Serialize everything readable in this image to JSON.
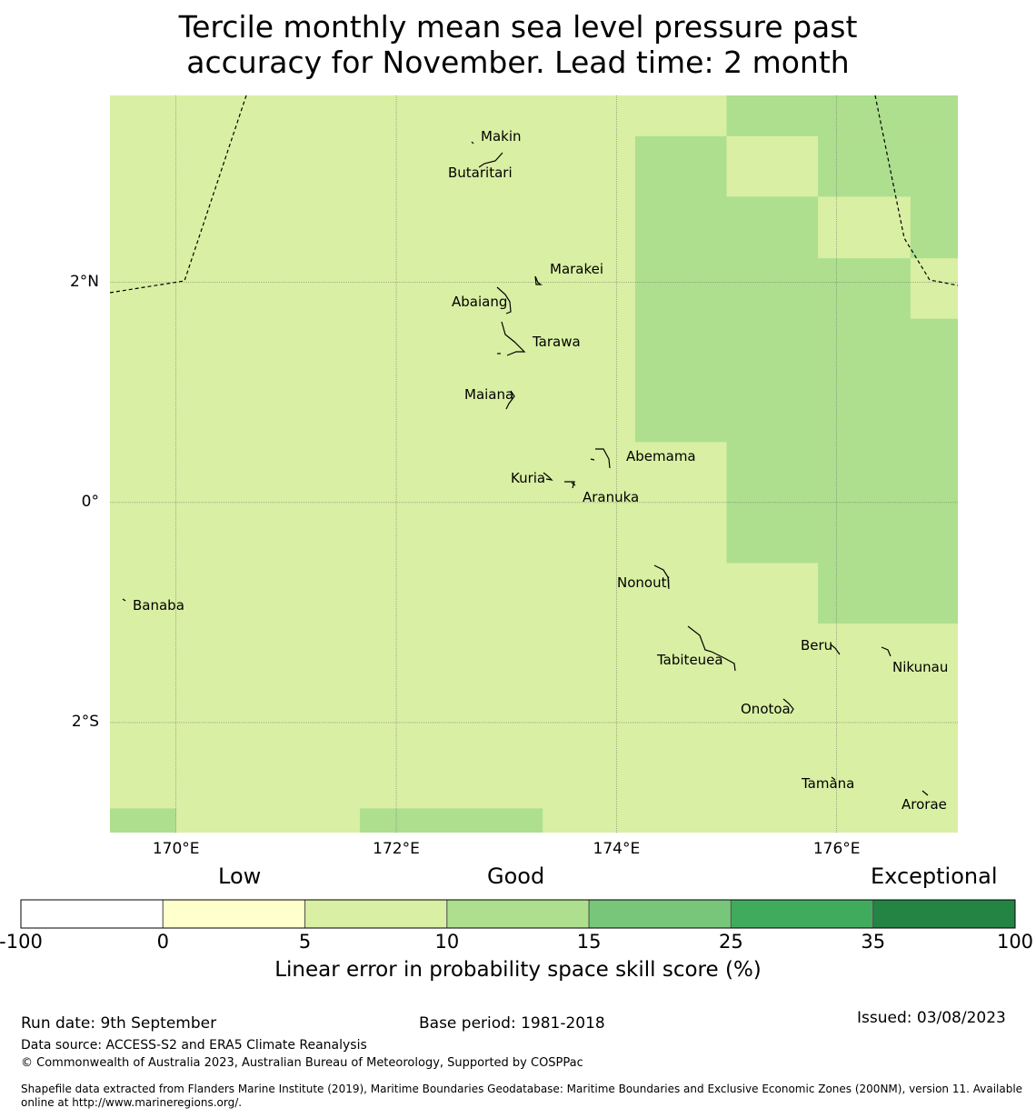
{
  "title": {
    "line1": "Tercile monthly mean sea level pressure past",
    "line2": "accuracy for November. Lead time: 2 month"
  },
  "map": {
    "lon_range": [
      169.4,
      177.1
    ],
    "lat_range": [
      -3.0,
      3.7
    ],
    "lat_ticks": [
      {
        "value": 2,
        "label": "2°N"
      },
      {
        "value": 0,
        "label": "0°"
      },
      {
        "value": -2,
        "label": "2°S"
      }
    ],
    "lon_ticks": [
      {
        "value": 170,
        "label": "170°E"
      },
      {
        "value": 172,
        "label": "172°E"
      },
      {
        "value": 174,
        "label": "174°E"
      },
      {
        "value": 176,
        "label": "176°E"
      }
    ],
    "base_color": "#d9efa3",
    "good_color": "#addf8e",
    "skill_cells_10_15": [
      [
        174.17,
        175.0,
        0.55,
        3.33
      ],
      [
        175.0,
        175.83,
        -0.55,
        2.78
      ],
      [
        175.83,
        176.67,
        -1.1,
        2.22
      ],
      [
        176.67,
        177.1,
        -1.1,
        1.67
      ],
      [
        175.0,
        177.1,
        3.33,
        3.7
      ],
      [
        175.83,
        176.67,
        2.78,
        3.33
      ],
      [
        176.67,
        177.1,
        2.22,
        3.33
      ],
      [
        169.4,
        170.0,
        -3.0,
        -2.78
      ],
      [
        171.67,
        173.33,
        -3.0,
        -2.78
      ]
    ],
    "islands": [
      {
        "name": "Makin",
        "lon": 173.0,
        "lat": 3.35
      },
      {
        "name": "Butaritari",
        "lon": 172.8,
        "lat": 3.0
      },
      {
        "name": "Marakei",
        "lon": 173.3,
        "lat": 2.0
      },
      {
        "name": "Abaiang",
        "lon": 173.0,
        "lat": 1.85
      },
      {
        "name": "Tarawa",
        "lon": 173.1,
        "lat": 1.45
      },
      {
        "name": "Maiana",
        "lon": 173.0,
        "lat": 0.95
      },
      {
        "name": "Abemama",
        "lon": 173.85,
        "lat": 0.4
      },
      {
        "name": "Kuria",
        "lon": 173.4,
        "lat": 0.22
      },
      {
        "name": "Aranuka",
        "lon": 173.6,
        "lat": 0.17
      },
      {
        "name": "Nonouti",
        "lon": 174.4,
        "lat": -0.65
      },
      {
        "name": "Banaba",
        "lon": 169.54,
        "lat": -0.88
      },
      {
        "name": "Tabiteuea",
        "lon": 174.8,
        "lat": -1.3
      },
      {
        "name": "Beru",
        "lon": 176.0,
        "lat": -1.35
      },
      {
        "name": "Nikunau",
        "lon": 176.45,
        "lat": -1.35
      },
      {
        "name": "Onotoa",
        "lon": 175.55,
        "lat": -1.8
      },
      {
        "name": "Tamana",
        "lon": 175.98,
        "lat": -2.5
      },
      {
        "name": "Arorae",
        "lon": 176.82,
        "lat": -2.65
      }
    ]
  },
  "legend": {
    "categories": [
      "Low",
      "Good",
      "Exceptional"
    ],
    "bins": [
      {
        "from": -100,
        "to": 0,
        "color": "#ffffff"
      },
      {
        "from": 0,
        "to": 5,
        "color": "#ffffcc"
      },
      {
        "from": 5,
        "to": 10,
        "color": "#d9efa3"
      },
      {
        "from": 10,
        "to": 15,
        "color": "#addf8e"
      },
      {
        "from": 15,
        "to": 25,
        "color": "#78c679"
      },
      {
        "from": 25,
        "to": 35,
        "color": "#41ab5d"
      },
      {
        "from": 35,
        "to": 100,
        "color": "#238443"
      }
    ],
    "tick_labels": [
      "-100",
      "0",
      "5",
      "10",
      "15",
      "25",
      "35",
      "100"
    ],
    "label": "Linear error in probability space skill score (%)"
  },
  "footer": {
    "run_date": "Run date: 9th September",
    "base_period": "Base period: 1981-2018",
    "issued": "Issued: 03/08/2023",
    "data_source": "Data source: ACCESS-S2 and ERA5 Climate Reanalysis",
    "copyright": "© Commonwealth of Australia 2023, Australian Bureau of Meteorology, Supported by COSPPac",
    "shapefile_line1": "Shapefile data extracted from Flanders Marine Institute (2019), Maritime Boundaries Geodatabase: Maritime Boundaries and Exclusive Economic Zones (200NM), version 11. Available",
    "shapefile_line2": "online at http://www.marineregions.org/."
  }
}
